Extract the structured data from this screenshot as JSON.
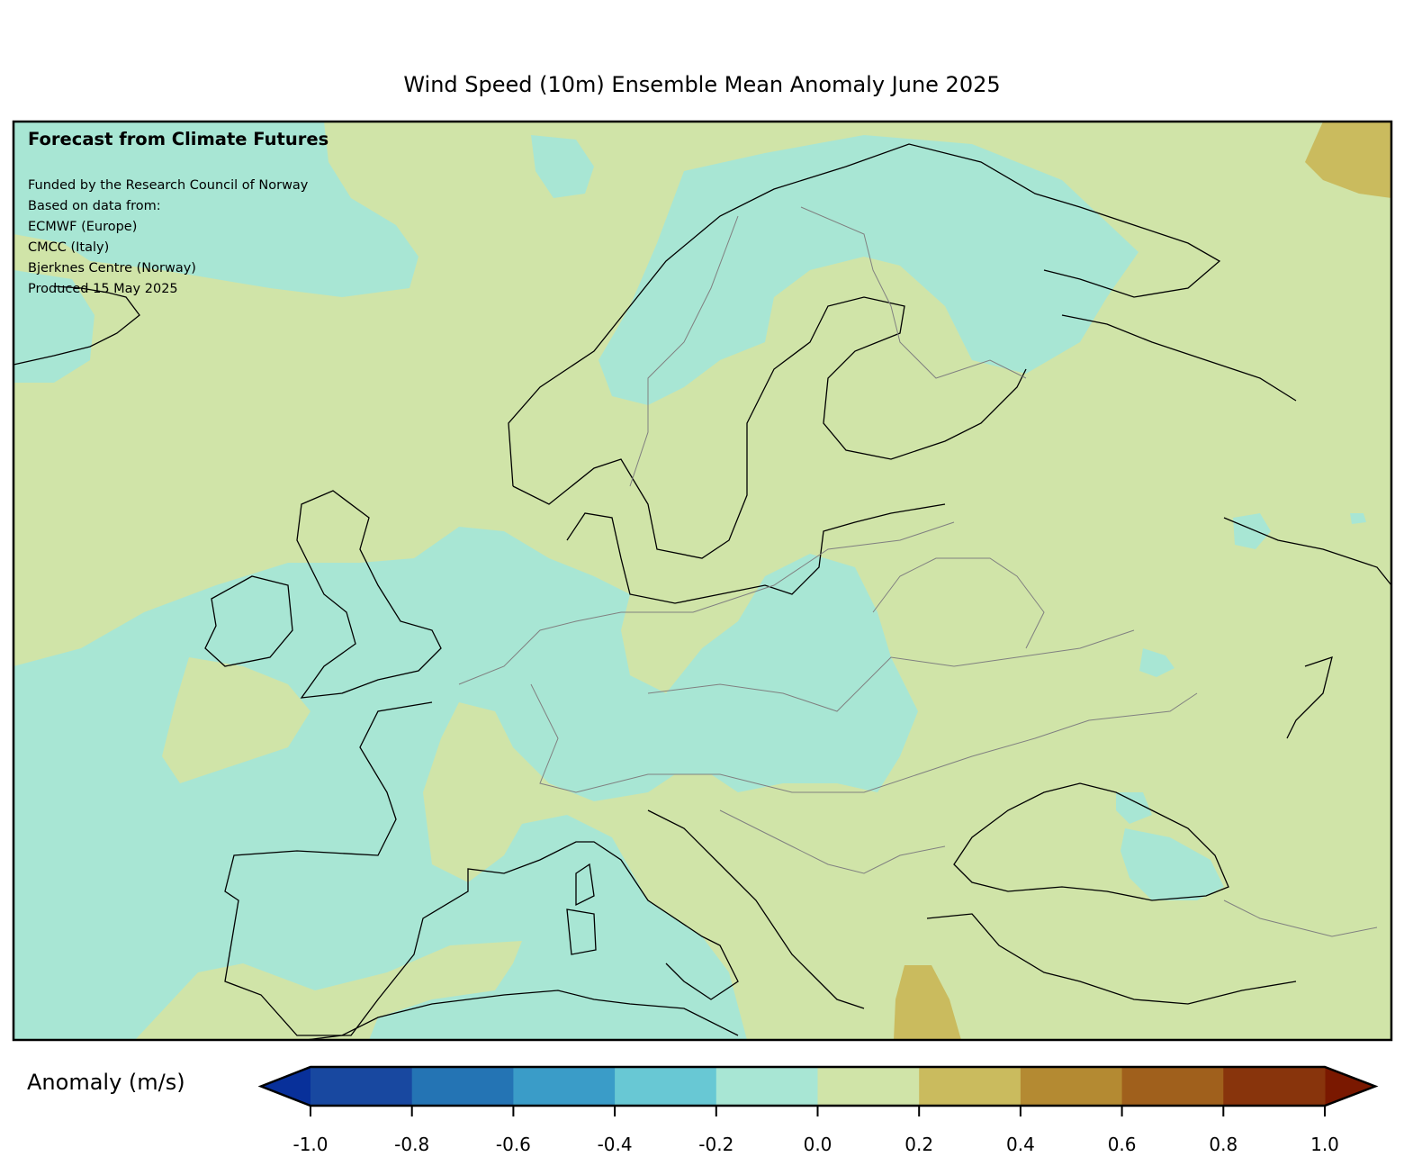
{
  "title": "Wind Speed (10m) Ensemble Mean Anomaly June 2025",
  "overlay": {
    "heading": "Forecast from Climate Futures",
    "lines": [
      "Funded by the Research Council of Norway",
      "Based on data from:",
      "ECMWF (Europe)",
      "CMCC (Italy)",
      "Bjerknes Centre (Norway)",
      "Produced 15 May 2025"
    ]
  },
  "colorbar": {
    "label": "Anomaly (m/s)",
    "ticks": [
      "-1.0",
      "-0.8",
      "-0.6",
      "-0.4",
      "-0.2",
      "0.0",
      "0.2",
      "0.4",
      "0.6",
      "0.8",
      "1.0"
    ],
    "extend_low_color": "#08309a",
    "extend_high_color": "#7a1800",
    "bin_colors": [
      "#1848a0",
      "#2474b4",
      "#3a9cc8",
      "#68c8d4",
      "#a8e6d4",
      "#d0e4a8",
      "#cabb5e",
      "#b48a32",
      "#a0601c",
      "#88340c"
    ]
  },
  "map_colors": {
    "neutral_positive": "#d0e4a8",
    "slight_negative": "#a8e6d4",
    "positive": "#cabb5e"
  }
}
